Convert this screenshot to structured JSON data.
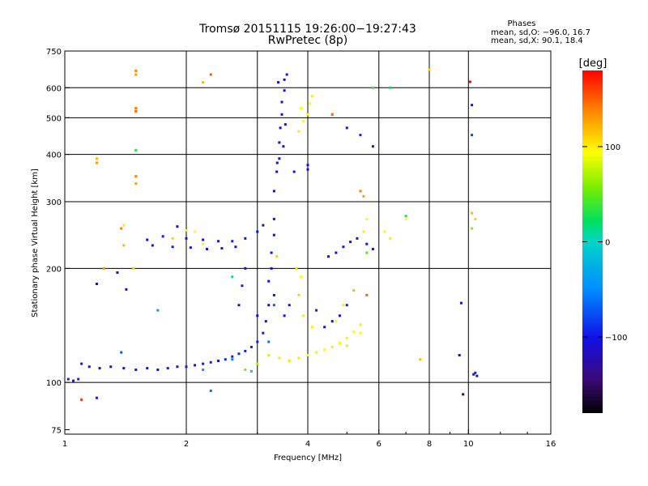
{
  "chart_data": {
    "type": "scatter",
    "title": "Tromsø 20151115 19:26:00−19:27:43",
    "subtitle": "RwPretec (8p)",
    "stats": {
      "header": "Phases",
      "line1": "mean, sd,O: −96.0, 16.7",
      "line2": "mean, sd,X:  90.1, 18.4"
    },
    "xlabel": "Frequency [MHz]",
    "ylabel": "Stationary phase Virtual Height [km]",
    "x_scale": "log",
    "y_scale": "log",
    "xlim": [
      1,
      16
    ],
    "ylim": [
      73,
      750
    ],
    "x_ticks": [
      "1",
      "2",
      "4",
      "6",
      "8",
      "10",
      "16"
    ],
    "x_tick_values": [
      1,
      2,
      4,
      6,
      8,
      10,
      16
    ],
    "y_ticks": [
      "75",
      "100",
      "200",
      "300",
      "400",
      "500",
      "600",
      "750"
    ],
    "y_tick_values": [
      75,
      100,
      200,
      300,
      400,
      500,
      600,
      750
    ],
    "grid": true,
    "colorbar": {
      "label": "[deg]",
      "ticks": [
        "100",
        "0",
        "−100"
      ],
      "tick_values": [
        100,
        0,
        -100
      ],
      "range": [
        -180,
        180
      ]
    },
    "series": [
      {
        "points": [
          [
            1.02,
            102,
            -95
          ],
          [
            1.05,
            101,
            -100
          ],
          [
            1.08,
            102,
            -92
          ],
          [
            1.1,
            112,
            -100
          ],
          [
            1.15,
            110,
            -98
          ],
          [
            1.22,
            109,
            -105
          ],
          [
            1.3,
            110,
            -100
          ],
          [
            1.4,
            109,
            -102
          ],
          [
            1.5,
            108,
            -98
          ],
          [
            1.6,
            109,
            -100
          ],
          [
            1.7,
            108,
            -104
          ],
          [
            1.8,
            109,
            -98
          ],
          [
            1.9,
            110,
            -100
          ],
          [
            2.0,
            110,
            -96
          ],
          [
            2.1,
            111,
            -100
          ],
          [
            2.2,
            112,
            -98
          ],
          [
            2.3,
            113,
            -95
          ],
          [
            2.4,
            114,
            -100
          ],
          [
            2.5,
            115,
            -92
          ],
          [
            2.6,
            117,
            -96
          ],
          [
            2.7,
            119,
            -90
          ],
          [
            2.8,
            121,
            -95
          ],
          [
            2.9,
            124,
            -92
          ],
          [
            3.0,
            128,
            -95
          ],
          [
            3.1,
            135,
            -98
          ],
          [
            3.15,
            145,
            -100
          ],
          [
            3.2,
            160,
            -102
          ],
          [
            3.2,
            185,
            -105
          ],
          [
            3.25,
            200,
            -100
          ],
          [
            3.25,
            220,
            -108
          ],
          [
            3.3,
            245,
            -110
          ],
          [
            3.3,
            270,
            -108
          ],
          [
            3.3,
            320,
            -112
          ],
          [
            3.35,
            360,
            -105
          ],
          [
            3.4,
            390,
            -108
          ],
          [
            3.4,
            430,
            -110
          ],
          [
            3.42,
            470,
            -105
          ],
          [
            3.45,
            510,
            -108
          ],
          [
            3.45,
            550,
            -112
          ],
          [
            3.5,
            590,
            -105
          ],
          [
            3.5,
            630,
            -108
          ],
          [
            3.55,
            650,
            -110
          ],
          [
            3.38,
            620,
            -105
          ],
          [
            3.48,
            420,
            -100
          ],
          [
            3.36,
            380,
            -115
          ],
          [
            3.52,
            480,
            -100
          ],
          [
            1.6,
            238,
            -100
          ],
          [
            1.75,
            243,
            -95
          ],
          [
            1.9,
            258,
            -110
          ],
          [
            2.0,
            240,
            -100
          ],
          [
            2.2,
            238,
            -105
          ],
          [
            2.4,
            236,
            -100
          ],
          [
            2.6,
            236,
            -95
          ],
          [
            2.8,
            240,
            -100
          ],
          [
            3.0,
            250,
            -105
          ],
          [
            3.1,
            260,
            -110
          ],
          [
            1.65,
            230,
            -100
          ],
          [
            1.85,
            228,
            -95
          ],
          [
            2.05,
            227,
            -100
          ],
          [
            2.25,
            225,
            -105
          ],
          [
            2.45,
            226,
            -100
          ],
          [
            2.65,
            228,
            -100
          ],
          [
            4.5,
            215,
            -100
          ],
          [
            4.7,
            220,
            -105
          ],
          [
            4.9,
            228,
            -100
          ],
          [
            5.1,
            235,
            -95
          ],
          [
            5.3,
            240,
            -100
          ],
          [
            5.6,
            232,
            -100
          ],
          [
            5.8,
            225,
            -105
          ],
          [
            2.7,
            160,
            -100
          ],
          [
            2.75,
            180,
            -95
          ],
          [
            2.8,
            200,
            -100
          ],
          [
            3.0,
            150,
            -105
          ],
          [
            3.3,
            170,
            -100
          ],
          [
            3.5,
            150,
            -98
          ],
          [
            3.6,
            160,
            -100
          ],
          [
            4.2,
            155,
            -95
          ],
          [
            4.4,
            140,
            -100
          ],
          [
            4.6,
            145,
            -105
          ],
          [
            4.8,
            150,
            -100
          ],
          [
            5.0,
            160,
            -95
          ],
          [
            1.35,
            195,
            -110
          ],
          [
            1.42,
            176,
            -130
          ],
          [
            1.2,
            182,
            -125
          ],
          [
            4.0,
            375,
            -100
          ],
          [
            4.0,
            365,
            -120
          ],
          [
            3.7,
            360,
            -110
          ],
          [
            5.8,
            420,
            -110
          ],
          [
            4.6,
            510,
            -80
          ],
          [
            5.0,
            470,
            -100
          ],
          [
            5.4,
            450,
            -95
          ],
          [
            9.6,
            162,
            -100
          ],
          [
            9.7,
            93,
            -150
          ],
          [
            10.3,
            105,
            -100
          ],
          [
            10.4,
            106,
            -95
          ],
          [
            10.5,
            104,
            -100
          ],
          [
            10.2,
            450,
            -80
          ],
          [
            10.2,
            540,
            -110
          ],
          [
            9.5,
            118,
            -100
          ],
          [
            1.38,
            120,
            -70
          ],
          [
            2.3,
            95,
            -60
          ],
          [
            2.6,
            115,
            -50
          ],
          [
            3.2,
            128,
            -60
          ],
          [
            3.3,
            160,
            -70
          ],
          [
            1.7,
            155,
            -40
          ],
          [
            2.2,
            108,
            -40
          ],
          [
            2.9,
            107,
            -10
          ],
          [
            1.2,
            91,
            -95
          ]
        ]
      },
      {
        "points": [
          [
            3.6,
            114,
            105
          ],
          [
            3.8,
            116,
            100
          ],
          [
            4.0,
            118,
            95
          ],
          [
            4.2,
            120,
            100
          ],
          [
            4.4,
            122,
            95
          ],
          [
            4.6,
            124,
            100
          ],
          [
            4.8,
            127,
            98
          ],
          [
            5.0,
            131,
            100
          ],
          [
            5.2,
            136,
            95
          ],
          [
            5.4,
            142,
            100
          ],
          [
            3.8,
            460,
            100
          ],
          [
            3.9,
            490,
            95
          ],
          [
            4.0,
            510,
            100
          ],
          [
            3.85,
            530,
            92
          ],
          [
            4.05,
            545,
            90
          ],
          [
            4.1,
            570,
            100
          ],
          [
            3.9,
            150,
            100
          ],
          [
            3.8,
            170,
            110
          ],
          [
            3.75,
            200,
            105
          ],
          [
            3.85,
            190,
            95
          ],
          [
            4.1,
            140,
            100
          ],
          [
            2.0,
            252,
            100
          ],
          [
            2.1,
            250,
            95
          ],
          [
            1.85,
            240,
            110
          ],
          [
            2.2,
            232,
            100
          ],
          [
            3.2,
            118,
            80
          ],
          [
            3.4,
            116,
            85
          ],
          [
            3.0,
            112,
            70
          ],
          [
            2.8,
            108,
            60
          ],
          [
            4.9,
            160,
            100
          ],
          [
            4.7,
            145,
            95
          ],
          [
            5.0,
            125,
            100
          ],
          [
            6.2,
            250,
            90
          ],
          [
            6.4,
            240,
            100
          ],
          [
            7.0,
            270,
            95
          ],
          [
            5.6,
            270,
            95
          ],
          [
            5.5,
            250,
            100
          ],
          [
            1.5,
            650,
            130
          ],
          [
            1.5,
            665,
            140
          ],
          [
            1.5,
            520,
            150
          ],
          [
            1.5,
            530,
            140
          ],
          [
            2.3,
            650,
            150
          ],
          [
            2.2,
            620,
            120
          ],
          [
            1.2,
            390,
            120
          ],
          [
            1.2,
            380,
            130
          ],
          [
            1.5,
            350,
            140
          ],
          [
            1.5,
            335,
            130
          ],
          [
            1.38,
            255,
            140
          ],
          [
            1.25,
            200,
            130
          ],
          [
            1.48,
            200,
            110
          ],
          [
            1.4,
            230,
            120
          ],
          [
            1.4,
            260,
            100
          ],
          [
            1.1,
            90,
            160
          ],
          [
            10.1,
            622,
            180
          ],
          [
            10.2,
            280,
            120
          ],
          [
            10.4,
            270,
            110
          ],
          [
            8.0,
            670,
            110
          ],
          [
            5.4,
            320,
            140
          ],
          [
            5.5,
            310,
            130
          ],
          [
            5.6,
            170,
            150
          ],
          [
            5.2,
            175,
            120
          ],
          [
            7.6,
            115,
            120
          ],
          [
            5.4,
            135,
            90
          ],
          [
            3.35,
            215,
            110
          ],
          [
            4.6,
            510,
            140
          ],
          [
            10.2,
            255,
            60
          ],
          [
            5.8,
            600,
            40
          ],
          [
            6.4,
            600,
            20
          ],
          [
            7.0,
            275,
            30
          ],
          [
            5.6,
            220,
            45
          ],
          [
            2.6,
            190,
            15
          ],
          [
            1.5,
            410,
            30
          ]
        ]
      }
    ]
  }
}
